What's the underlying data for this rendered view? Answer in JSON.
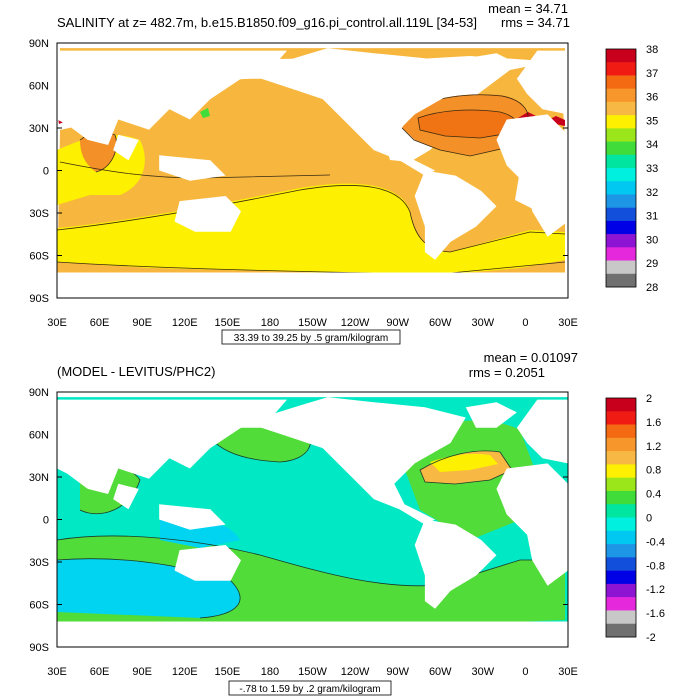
{
  "chart_data": [
    {
      "type": "heatmap",
      "title": "SALINITY at z= 482.7m, b.e15.B1850.f09_g16.pi_control.all.119L [34-53]",
      "stat_mean": "mean = 34.71",
      "stat_rms": "rms = 34.71",
      "subtitle": "33.39 to 39.25 by .5 gram/kilogram",
      "x_ticks": [
        "30E",
        "60E",
        "90E",
        "120E",
        "150E",
        "180",
        "150W",
        "120W",
        "90W",
        "60W",
        "30W",
        "0",
        "30E"
      ],
      "y_ticks": [
        "90N",
        "60N",
        "30N",
        "0",
        "30S",
        "60S",
        "90S"
      ],
      "xlim": [
        30,
        390
      ],
      "ylim": [
        -90,
        90
      ],
      "colorbar": {
        "labels": [
          "38",
          "37",
          "36",
          "35",
          "34",
          "33",
          "32",
          "31",
          "30",
          "29",
          "28"
        ],
        "colors": [
          "#c8001c",
          "#f01c14",
          "#f46a12",
          "#f7962a",
          "#f8b844",
          "#fdf000",
          "#9be61a",
          "#40dc3a",
          "#00e6a0",
          "#00f0e0",
          "#00c8f0",
          "#1e96e6",
          "#1250dc",
          "#0000e6",
          "#8c14d2",
          "#e628dc",
          "#c8c8c8",
          "#707070"
        ]
      }
    },
    {
      "type": "heatmap",
      "title": "(MODEL - LEVITUS/PHC2)",
      "stat_mean": "mean = 0.01097",
      "stat_rms": "rms = 0.2051",
      "subtitle": "-.78 to 1.59 by .2 gram/kilogram",
      "x_ticks": [
        "30E",
        "60E",
        "90E",
        "120E",
        "150E",
        "180",
        "150W",
        "120W",
        "90W",
        "60W",
        "30W",
        "0",
        "30E"
      ],
      "y_ticks": [
        "90N",
        "60N",
        "30N",
        "0",
        "30S",
        "60S",
        "90S"
      ],
      "xlim": [
        30,
        390
      ],
      "ylim": [
        -90,
        90
      ],
      "colorbar": {
        "labels": [
          "2",
          "1.6",
          "1.2",
          "0.8",
          "0.4",
          "0",
          "-0.4",
          "-0.8",
          "-1.2",
          "-1.6",
          "-2"
        ],
        "colors": [
          "#c8001c",
          "#f01c14",
          "#f46a12",
          "#f7962a",
          "#f8b844",
          "#fdf000",
          "#9be61a",
          "#40dc3a",
          "#00e6a0",
          "#00f0e0",
          "#00c8f0",
          "#1e96e6",
          "#1250dc",
          "#0000e6",
          "#8c14d2",
          "#e628dc",
          "#c8c8c8",
          "#707070"
        ]
      }
    }
  ]
}
